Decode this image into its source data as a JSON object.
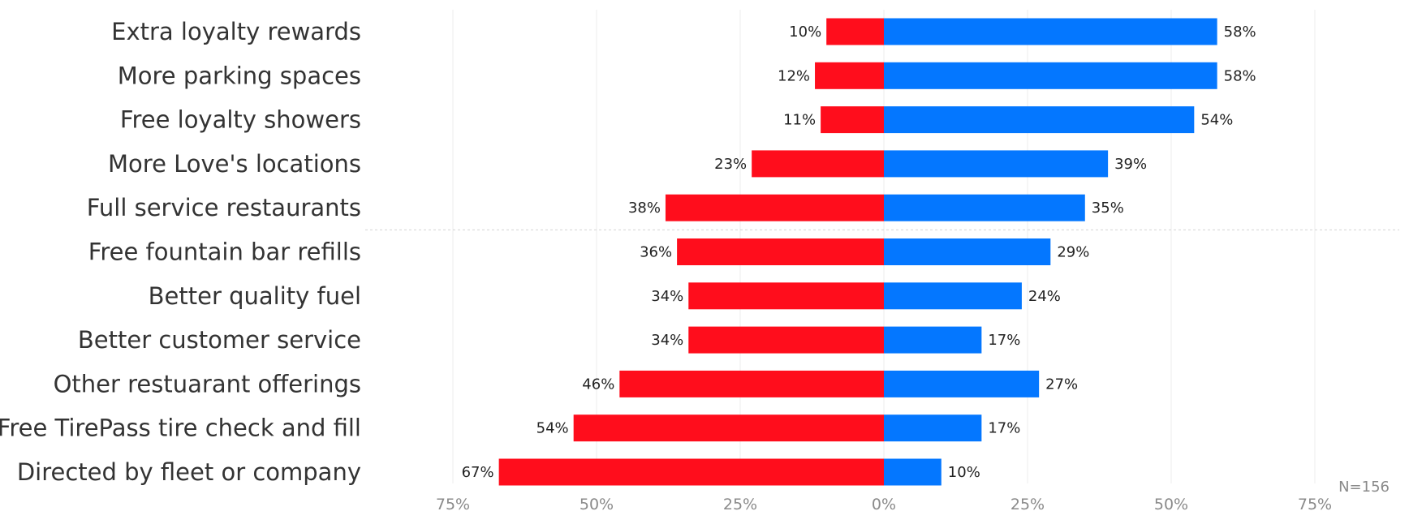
{
  "chart_data": {
    "type": "bar",
    "orientation": "horizontal-diverging",
    "categories": [
      "Extra loyalty rewards",
      "More parking spaces",
      "Free loyalty showers",
      "More Love's locations",
      "Full service restaurants",
      "Free fountain bar refills",
      "Better quality fuel",
      "Better customer service",
      "Other restuarant offerings",
      "Free TirePass tire check and fill",
      "Directed by fleet or company"
    ],
    "series": [
      {
        "color": "#ff0d1c",
        "side": "left",
        "values": [
          10,
          12,
          11,
          23,
          38,
          36,
          34,
          34,
          46,
          54,
          67
        ]
      },
      {
        "color": "#0477ff",
        "side": "right",
        "values": [
          58,
          58,
          54,
          39,
          35,
          29,
          24,
          17,
          27,
          17,
          10
        ]
      }
    ],
    "value_suffix": "%",
    "xlim": [
      -75,
      75
    ],
    "ticks": [
      -75,
      -50,
      -25,
      0,
      25,
      50,
      75
    ],
    "tick_labels": [
      "75%",
      "50%",
      "25%",
      "0%",
      "25%",
      "50%",
      "75%"
    ],
    "grid": true,
    "divider_after_index": 4,
    "note": "N=156"
  }
}
